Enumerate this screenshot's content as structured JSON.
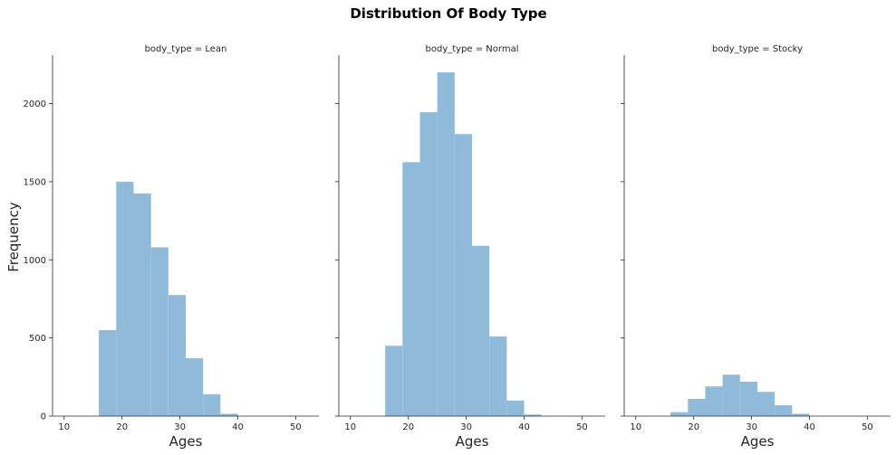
{
  "chart_data": {
    "type": "bar",
    "title": "Distribution Of Body Type",
    "ylabel": "Frequency",
    "xlabel": "Ages",
    "xlim": [
      8,
      54
    ],
    "ylim": [
      0,
      2310
    ],
    "x_ticks": [
      10,
      20,
      30,
      40,
      50
    ],
    "y_ticks": [
      0,
      500,
      1000,
      1500,
      2000
    ],
    "bar_color": "#8fbad9",
    "facets": [
      {
        "title": "body_type = Lean",
        "bins": [
          {
            "x0": 16,
            "x1": 19,
            "count": 550
          },
          {
            "x0": 19,
            "x1": 22,
            "count": 1500
          },
          {
            "x0": 22,
            "x1": 25,
            "count": 1425
          },
          {
            "x0": 25,
            "x1": 28,
            "count": 1080
          },
          {
            "x0": 28,
            "x1": 31,
            "count": 775
          },
          {
            "x0": 31,
            "x1": 34,
            "count": 370
          },
          {
            "x0": 34,
            "x1": 37,
            "count": 140
          },
          {
            "x0": 37,
            "x1": 40,
            "count": 15
          }
        ]
      },
      {
        "title": "body_type = Normal",
        "bins": [
          {
            "x0": 16,
            "x1": 19,
            "count": 450
          },
          {
            "x0": 19,
            "x1": 22,
            "count": 1625
          },
          {
            "x0": 22,
            "x1": 25,
            "count": 1945
          },
          {
            "x0": 25,
            "x1": 28,
            "count": 2200
          },
          {
            "x0": 28,
            "x1": 31,
            "count": 1805
          },
          {
            "x0": 31,
            "x1": 34,
            "count": 1090
          },
          {
            "x0": 34,
            "x1": 37,
            "count": 510
          },
          {
            "x0": 37,
            "x1": 40,
            "count": 100
          },
          {
            "x0": 40,
            "x1": 43,
            "count": 10
          }
        ]
      },
      {
        "title": "body_type = Stocky",
        "bins": [
          {
            "x0": 16,
            "x1": 19,
            "count": 25
          },
          {
            "x0": 19,
            "x1": 22,
            "count": 110
          },
          {
            "x0": 22,
            "x1": 25,
            "count": 190
          },
          {
            "x0": 25,
            "x1": 28,
            "count": 265
          },
          {
            "x0": 28,
            "x1": 31,
            "count": 220
          },
          {
            "x0": 31,
            "x1": 34,
            "count": 155
          },
          {
            "x0": 34,
            "x1": 37,
            "count": 70
          },
          {
            "x0": 37,
            "x1": 40,
            "count": 15
          }
        ]
      }
    ]
  }
}
